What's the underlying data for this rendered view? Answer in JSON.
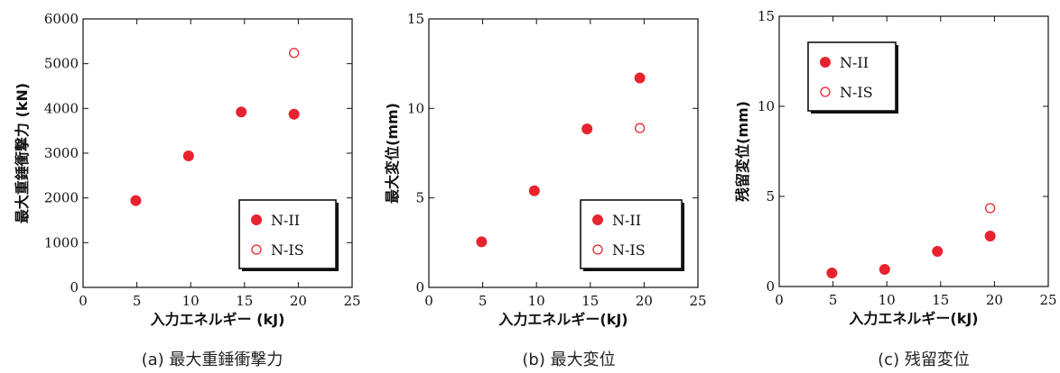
{
  "chart_data": [
    {
      "type": "scatter",
      "caption": "(a) 最大重錘衝撃力",
      "xlabel": "入力エネルギー (kJ)",
      "ylabel": "最大重錘衝撃力 (kN)",
      "xlim": [
        0,
        25
      ],
      "ylim": [
        0,
        6000
      ],
      "xticks": [
        0,
        5,
        10,
        15,
        20,
        25
      ],
      "yticks": [
        0,
        1000,
        2000,
        3000,
        4000,
        5000,
        6000
      ],
      "legend_position": "lower-right",
      "series": [
        {
          "name": "N-II",
          "marker": "filled-circle",
          "color": "#e8232f",
          "points": [
            [
              4.9,
              1940
            ],
            [
              9.8,
              2940
            ],
            [
              14.7,
              3920
            ],
            [
              19.6,
              3870
            ]
          ]
        },
        {
          "name": "N-IS",
          "marker": "open-circle",
          "color": "#e8232f",
          "points": [
            [
              19.6,
              5240
            ]
          ]
        }
      ]
    },
    {
      "type": "scatter",
      "caption": "(b) 最大変位",
      "xlabel": "入力エネルギー(kJ)",
      "ylabel": "最大変位(mm)",
      "xlim": [
        0,
        25
      ],
      "ylim": [
        0,
        15
      ],
      "xticks": [
        0,
        5,
        10,
        15,
        20,
        25
      ],
      "yticks": [
        0,
        5,
        10,
        15
      ],
      "legend_position": "lower-right",
      "series": [
        {
          "name": "N-II",
          "marker": "filled-circle",
          "color": "#e8232f",
          "points": [
            [
              4.9,
              2.55
            ],
            [
              9.8,
              5.4
            ],
            [
              14.7,
              8.85
            ],
            [
              19.6,
              11.7
            ]
          ]
        },
        {
          "name": "N-IS",
          "marker": "open-circle",
          "color": "#e8232f",
          "points": [
            [
              19.6,
              8.9
            ]
          ]
        }
      ]
    },
    {
      "type": "scatter",
      "caption": "(c) 残留変位",
      "xlabel": "入力エネルギー(kJ)",
      "ylabel": "残留変位(mm)",
      "xlim": [
        0,
        25
      ],
      "ylim": [
        0,
        15
      ],
      "xticks": [
        0,
        5,
        10,
        15,
        20,
        25
      ],
      "yticks": [
        0,
        5,
        10,
        15
      ],
      "legend_position": "upper-left",
      "series": [
        {
          "name": "N-II",
          "marker": "filled-circle",
          "color": "#e8232f",
          "points": [
            [
              4.9,
              0.75
            ],
            [
              9.8,
              0.95
            ],
            [
              14.7,
              1.95
            ],
            [
              19.6,
              2.8
            ]
          ]
        },
        {
          "name": "N-IS",
          "marker": "open-circle",
          "color": "#e8232f",
          "points": [
            [
              19.6,
              4.35
            ]
          ]
        }
      ]
    }
  ]
}
